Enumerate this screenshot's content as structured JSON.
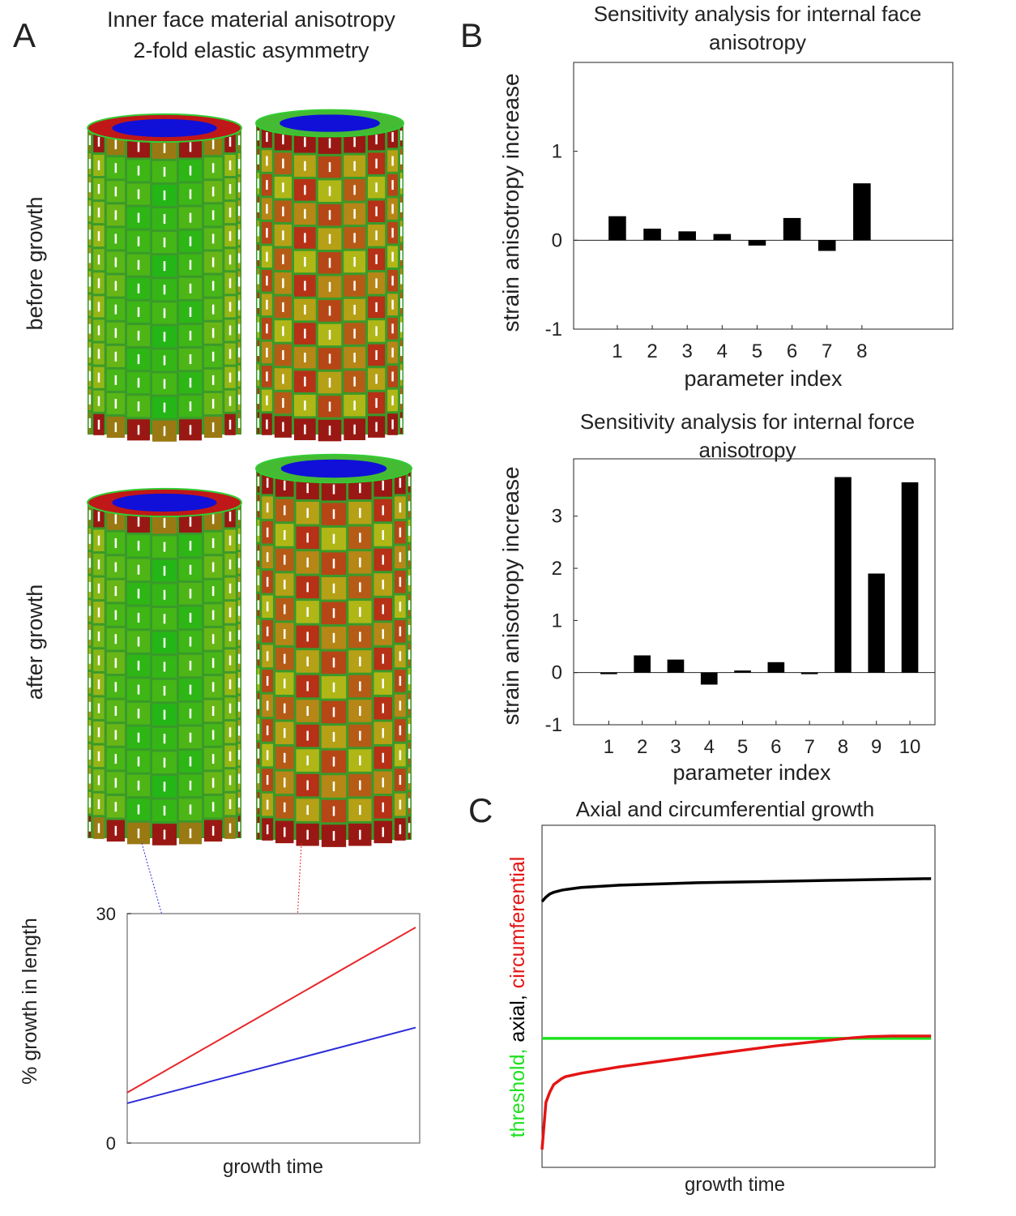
{
  "panel_labels": [
    "A",
    "B",
    "C"
  ],
  "panel_a": {
    "title_lines": [
      "Inner face material anisotropy",
      "2-fold elastic asymmetry"
    ],
    "row_labels": [
      "before growth",
      "after growth"
    ]
  },
  "chart_data": [
    {
      "type": "line",
      "ylabel": "% growth in length",
      "xlabel": "growth time",
      "x": [
        0,
        1
      ],
      "xlim": [
        0,
        1.014
      ],
      "ylim": [
        0,
        30
      ],
      "yticks": [
        0,
        30
      ],
      "series": [
        {
          "color": "#e8262b",
          "values": [
            6.6,
            28.2
          ]
        },
        {
          "color": "#2b2bd9",
          "values": [
            5.2,
            15.1
          ]
        }
      ]
    },
    {
      "type": "bar",
      "title": "Sensitivity analysis for internal face anisotropy",
      "ylabel": "strain anisotropy increase",
      "xlabel": "parameter index",
      "x": [
        1,
        2,
        3,
        4,
        5,
        6,
        7,
        8
      ],
      "values": [
        0.27,
        0.13,
        0.1,
        0.07,
        -0.06,
        0.25,
        -0.12,
        0.64
      ],
      "color": "#000000",
      "xlim": [
        -0.25,
        10.6
      ],
      "xticks": [
        1,
        2,
        3,
        4,
        5,
        6,
        7,
        8
      ],
      "ylim": [
        -1,
        2
      ],
      "yticks": [
        -1,
        0,
        1
      ]
    },
    {
      "type": "bar",
      "title": "Sensitivity analysis for internal force anisotropy",
      "ylabel": "strain anisotropy increase",
      "xlabel": "parameter index",
      "x": [
        1,
        2,
        3,
        4,
        5,
        6,
        7,
        8,
        9,
        10
      ],
      "values": [
        -0.03,
        0.33,
        0.25,
        -0.23,
        0.04,
        0.2,
        -0.03,
        3.75,
        1.9,
        3.65
      ],
      "color": "#000000",
      "xlim": [
        -0.05,
        10.75
      ],
      "xticks": [
        1,
        2,
        3,
        4,
        5,
        6,
        7,
        8,
        9,
        10
      ],
      "ylim": [
        -1,
        4.1
      ],
      "yticks": [
        -1,
        0,
        1,
        2,
        3
      ]
    },
    {
      "type": "line",
      "title": "Axial and circumferential growth",
      "xlabel": "growth time",
      "x": [
        0,
        1,
        2,
        3,
        5,
        6,
        10,
        20,
        40,
        60,
        80,
        84,
        90,
        100
      ],
      "xlim": [
        0,
        101
      ],
      "ylim": [
        0,
        100
      ],
      "series": [
        {
          "name": "threshold,",
          "color": "#1fe01f",
          "values": [
            37.7,
            37.7,
            37.7,
            37.7,
            37.7,
            37.7,
            37.7,
            37.7,
            37.7,
            37.7,
            37.7,
            37.7,
            37.7,
            37.7
          ]
        },
        {
          "name": "axial,",
          "color": "#000000",
          "values": [
            77.7,
            79.0,
            79.9,
            80.4,
            81.0,
            81.2,
            81.8,
            82.5,
            83.2,
            83.6,
            84.0,
            84.1,
            84.2,
            84.4
          ]
        },
        {
          "name": "circumferential",
          "color": "#e41414",
          "values": [
            5.2,
            19.0,
            22.0,
            24.2,
            25.9,
            26.5,
            27.5,
            29.4,
            32.5,
            35.5,
            37.9,
            38.2,
            38.4,
            38.4
          ]
        }
      ]
    }
  ]
}
